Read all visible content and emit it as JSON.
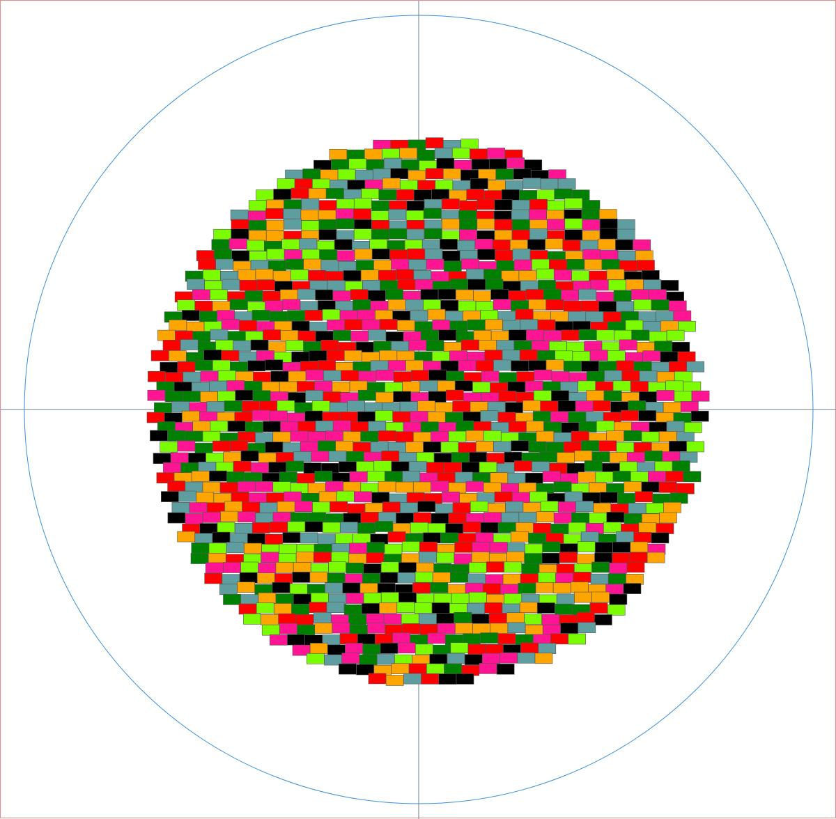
{
  "canvas": {
    "background": "#ffffff",
    "frame_color": "#e88a8a",
    "axis_color": "#6a7a88",
    "circle_color": "#3a8fd8"
  },
  "tiles": {
    "palette": {
      "red": "#ff0000",
      "black": "#000000",
      "green": "#008000",
      "lime": "#7cfc00",
      "pink": "#ff1493",
      "orange": "#ffa500",
      "teal": "#5f9ea0"
    },
    "color_order": [
      "red",
      "black",
      "green",
      "lime",
      "pink",
      "orange",
      "teal"
    ],
    "seed": 7
  }
}
